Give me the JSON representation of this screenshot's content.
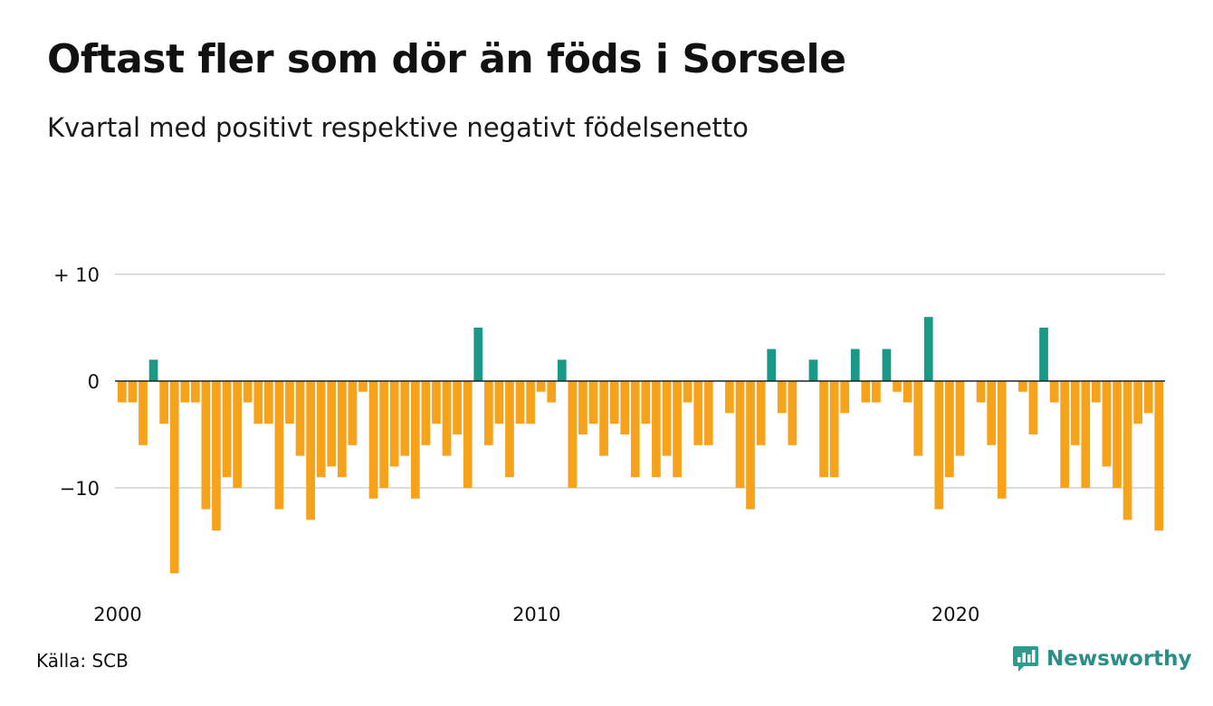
{
  "title": "Oftast fler som dör än föds i Sorsele",
  "subtitle": "Kvartal med positivt respektive negativt födelsenetto",
  "source": "Källa: SCB",
  "brand": {
    "name": "Newsworthy",
    "color": "#2a9d8f"
  },
  "colors": {
    "positive": "#1a9988",
    "negative": "#f6a21b",
    "grid": "#dddddd",
    "zero": "#222222"
  },
  "chart_data": {
    "type": "bar",
    "x_start": "2000 Q1",
    "frequency": "quarterly",
    "values": [
      -2,
      -2,
      -6,
      2,
      -4,
      -18,
      -2,
      -2,
      -12,
      -14,
      -9,
      -10,
      -2,
      -4,
      -4,
      -12,
      -4,
      -7,
      -13,
      -9,
      -8,
      -9,
      -6,
      -1,
      -11,
      -10,
      -8,
      -7,
      -11,
      -6,
      -4,
      -7,
      -5,
      -10,
      5,
      -6,
      -4,
      -9,
      -4,
      -4,
      -1,
      -2,
      2,
      -10,
      -5,
      -4,
      -7,
      -4,
      -5,
      -9,
      -4,
      -9,
      -7,
      -9,
      -2,
      -6,
      -6,
      0,
      -3,
      -10,
      -12,
      -6,
      3,
      -3,
      -6,
      0,
      2,
      -9,
      -9,
      -3,
      3,
      -2,
      -2,
      3,
      -1,
      -2,
      -7,
      6,
      -12,
      -9,
      -7,
      0,
      -2,
      -6,
      -11,
      0,
      -1,
      -5,
      5,
      -2,
      -10,
      -6,
      -10,
      -2,
      -8,
      -10,
      -13,
      -4,
      -3,
      -14
    ],
    "ylim": [
      -18,
      10
    ],
    "y_ticks": [
      {
        "value": 10,
        "label": "+ 10"
      },
      {
        "value": 0,
        "label": "0"
      },
      {
        "value": -10,
        "label": "−10"
      }
    ],
    "x_ticks": [
      {
        "index": 0,
        "label": "2000"
      },
      {
        "index": 40,
        "label": "2010"
      },
      {
        "index": 80,
        "label": "2020"
      }
    ],
    "grid": true,
    "legend": "none"
  }
}
